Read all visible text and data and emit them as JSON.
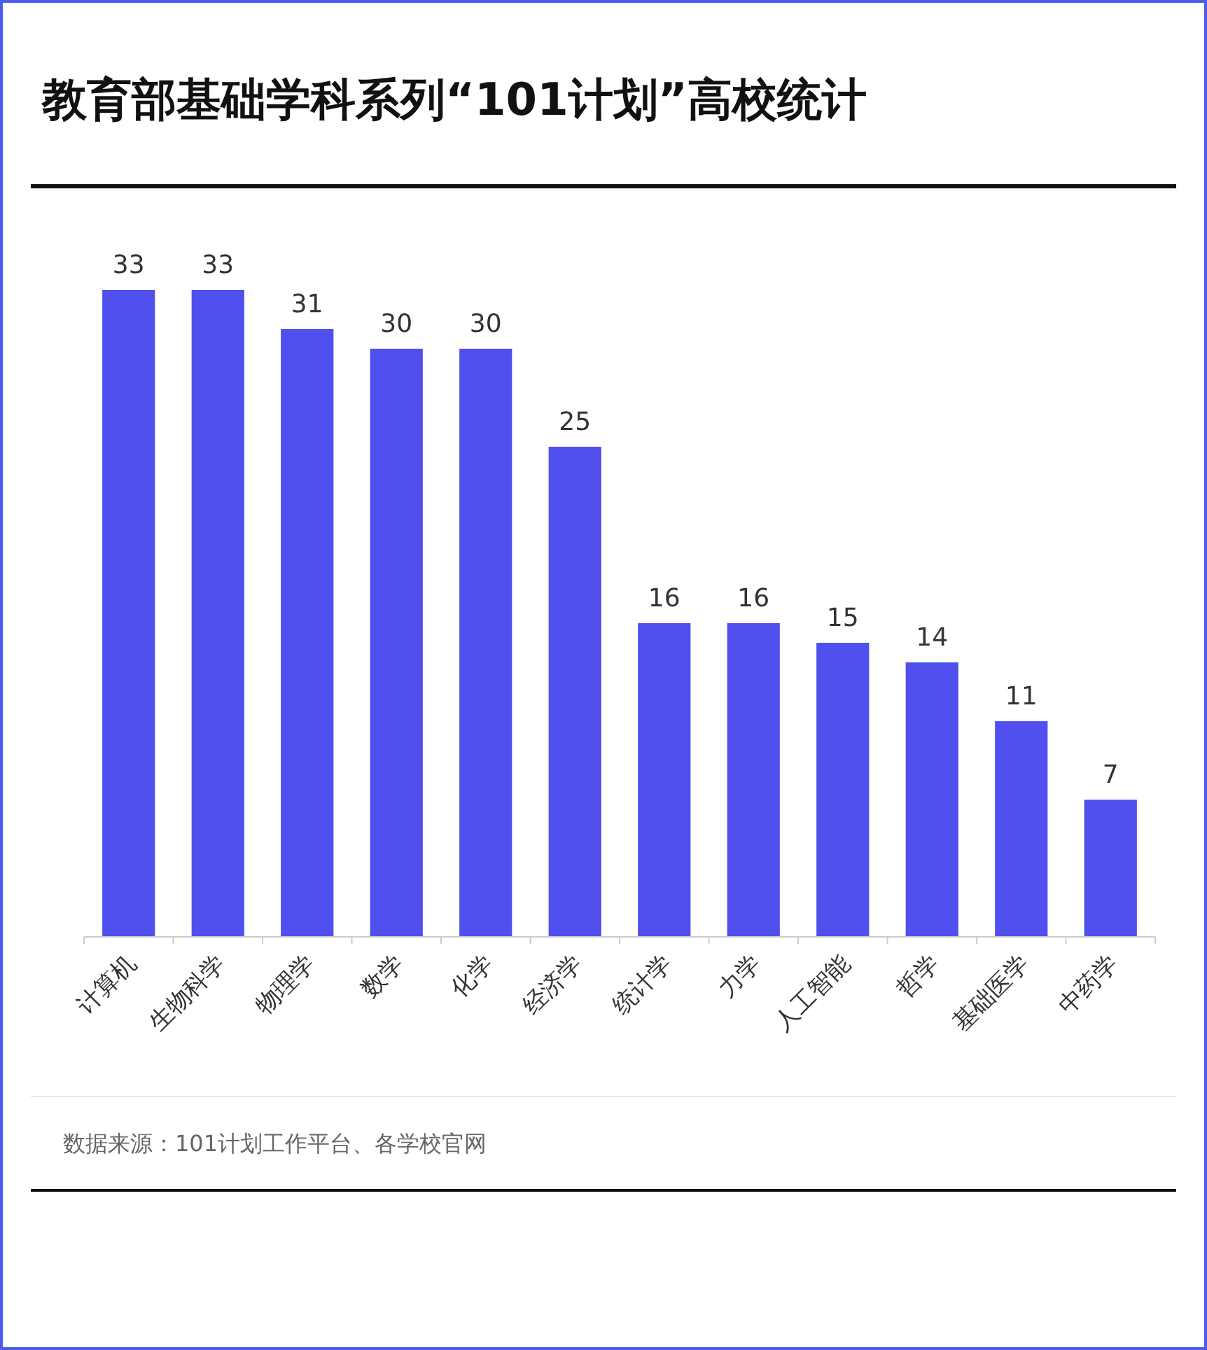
{
  "chart_data": {
    "type": "bar",
    "title": "教育部基础学科系列“101计划”高校统计",
    "categories": [
      "计算机",
      "生物科学",
      "物理学",
      "数学",
      "化学",
      "经济学",
      "统计学",
      "力学",
      "人工智能",
      "哲学",
      "基础医学",
      "中药学"
    ],
    "values": [
      33,
      33,
      31,
      30,
      30,
      25,
      16,
      16,
      15,
      14,
      11,
      7
    ],
    "color": "#5050ee",
    "data_labels": true,
    "annotations": [
      "数据来源：101计划工作平台、各学校官网"
    ]
  }
}
